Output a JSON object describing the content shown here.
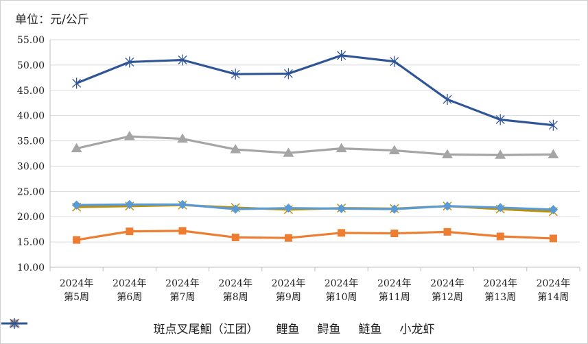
{
  "unit_label": "单位：元/公斤",
  "chart_data": {
    "type": "line",
    "title": "",
    "xlabel": "",
    "ylabel": "",
    "ylim": [
      10,
      55
    ],
    "yticks": [
      "10.00",
      "15.00",
      "20.00",
      "25.00",
      "30.00",
      "35.00",
      "40.00",
      "45.00",
      "50.00",
      "55.00"
    ],
    "categories": [
      [
        "2024年",
        "第5周"
      ],
      [
        "2024年",
        "第6周"
      ],
      [
        "2024年",
        "第7周"
      ],
      [
        "2024年",
        "第8周"
      ],
      [
        "2024年",
        "第9周"
      ],
      [
        "2024年",
        "第10周"
      ],
      [
        "2024年",
        "第11周"
      ],
      [
        "2024年",
        "第12周"
      ],
      [
        "2024年",
        "第13周"
      ],
      [
        "2024年",
        "第14周"
      ]
    ],
    "grid": "horizontal",
    "legend_position": "bottom",
    "series": [
      {
        "name": "斑点叉尾鮰（江团）",
        "color": "#5B9BD5",
        "marker": "diamond",
        "values": [
          22.3,
          22.4,
          22.4,
          21.5,
          21.7,
          21.6,
          21.5,
          22.1,
          21.8,
          21.4
        ]
      },
      {
        "name": "鲤鱼",
        "color": "#ED7D31",
        "marker": "square",
        "values": [
          15.4,
          17.1,
          17.2,
          15.9,
          15.8,
          16.8,
          16.7,
          17.0,
          16.1,
          15.7
        ]
      },
      {
        "name": "鲟鱼",
        "color": "#A5A5A5",
        "marker": "triangle",
        "values": [
          33.5,
          35.9,
          35.4,
          33.3,
          32.6,
          33.5,
          33.1,
          32.3,
          32.2,
          32.3
        ]
      },
      {
        "name": "鲢鱼",
        "color": "#BF9000",
        "marker": "x",
        "values": [
          21.9,
          22.1,
          22.3,
          21.8,
          21.4,
          21.7,
          21.6,
          22.1,
          21.5,
          21.0
        ]
      },
      {
        "name": "小龙虾",
        "color": "#2F5597",
        "marker": "star",
        "values": [
          46.4,
          50.6,
          51.0,
          48.2,
          48.3,
          51.9,
          50.7,
          43.2,
          39.2,
          38.1
        ]
      }
    ]
  }
}
